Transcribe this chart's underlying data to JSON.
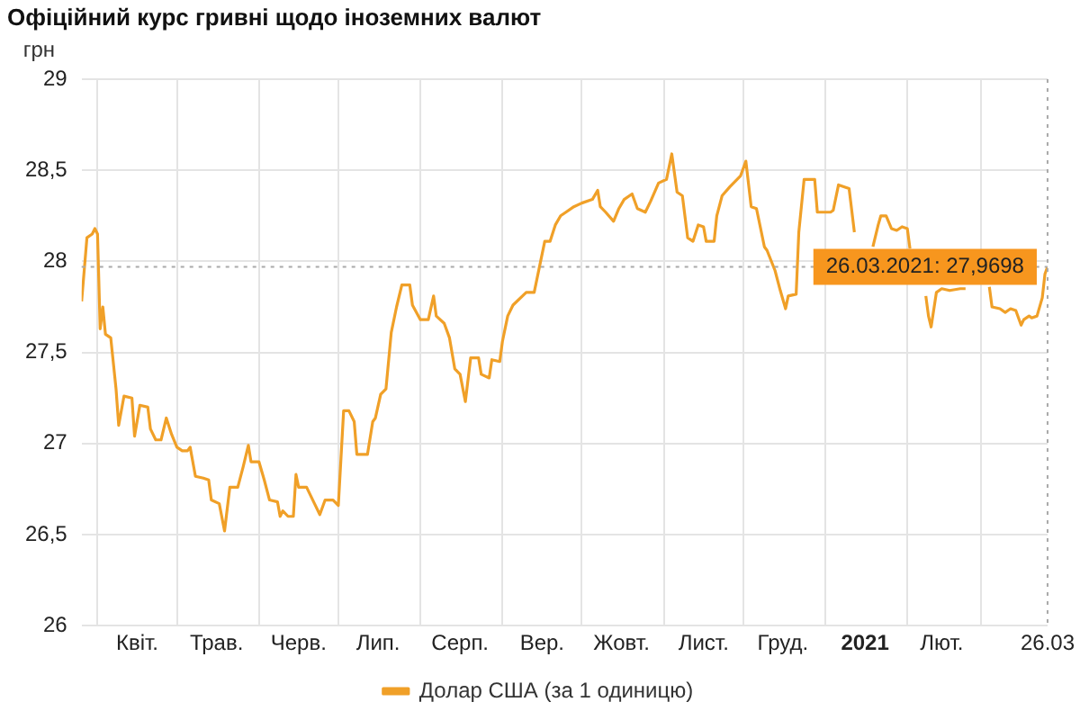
{
  "chart_data": {
    "type": "line",
    "title": "Офіційний курс гривні щодо іноземних валют",
    "ylabel": "грн",
    "series": [
      {
        "name": "Долар США (за 1 одиницю)",
        "color": "#f0a028",
        "x": [
          "2020-03-26",
          "2020-03-28",
          "2020-03-30",
          "2020-03-31",
          "2020-04-01",
          "2020-04-02",
          "2020-04-03",
          "2020-04-04",
          "2020-04-06",
          "2020-04-08",
          "2020-04-09",
          "2020-04-11",
          "2020-04-14",
          "2020-04-15",
          "2020-04-17",
          "2020-04-20",
          "2020-04-21",
          "2020-04-23",
          "2020-04-25",
          "2020-04-27",
          "2020-04-29",
          "2020-05-01",
          "2020-05-03",
          "2020-05-05",
          "2020-05-06",
          "2020-05-08",
          "2020-05-11",
          "2020-05-13",
          "2020-05-14",
          "2020-05-17",
          "2020-05-19",
          "2020-05-21",
          "2020-05-24",
          "2020-05-26",
          "2020-05-28",
          "2020-05-29",
          "2020-06-01",
          "2020-06-03",
          "2020-06-05",
          "2020-06-08",
          "2020-06-09",
          "2020-06-10",
          "2020-06-12",
          "2020-06-14",
          "2020-06-15",
          "2020-06-16",
          "2020-06-19",
          "2020-06-22",
          "2020-06-24",
          "2020-06-26",
          "2020-06-29",
          "2020-07-01",
          "2020-07-03",
          "2020-07-05",
          "2020-07-07",
          "2020-07-08",
          "2020-07-10",
          "2020-07-12",
          "2020-07-14",
          "2020-07-15",
          "2020-07-17",
          "2020-07-19",
          "2020-07-21",
          "2020-07-23",
          "2020-07-25",
          "2020-07-28",
          "2020-07-29",
          "2020-08-01",
          "2020-08-04",
          "2020-08-06",
          "2020-08-07",
          "2020-08-10",
          "2020-08-12",
          "2020-08-14",
          "2020-08-16",
          "2020-08-18",
          "2020-08-20",
          "2020-08-23",
          "2020-08-24",
          "2020-08-27",
          "2020-08-28",
          "2020-08-31",
          "2020-09-01",
          "2020-09-03",
          "2020-09-05",
          "2020-09-10",
          "2020-09-13",
          "2020-09-17",
          "2020-09-19",
          "2020-09-21",
          "2020-09-23",
          "2020-09-25",
          "2020-09-28",
          "2020-10-01",
          "2020-10-05",
          "2020-10-07",
          "2020-10-08",
          "2020-10-10",
          "2020-10-13",
          "2020-10-15",
          "2020-10-17",
          "2020-10-20",
          "2020-10-22",
          "2020-10-25",
          "2020-10-27",
          "2020-10-30",
          "2020-11-02",
          "2020-11-04",
          "2020-11-06",
          "2020-11-08",
          "2020-11-10",
          "2020-11-12",
          "2020-11-14",
          "2020-11-16",
          "2020-11-17",
          "2020-11-20",
          "2020-11-21",
          "2020-11-23",
          "2020-11-26",
          "2020-11-28",
          "2020-11-30",
          "2020-12-02",
          "2020-12-04",
          "2020-12-06",
          "2020-12-09",
          "2020-12-10",
          "2020-12-13",
          "2020-12-15",
          "2020-12-17",
          "2020-12-18",
          "2020-12-21",
          "2020-12-22",
          "2020-12-24",
          "2020-12-28",
          "2020-12-29",
          "2020-12-31",
          "2021-01-03",
          "2021-01-04",
          "2021-01-06",
          "2021-01-10",
          "2021-01-12",
          "2021-01-16",
          "2021-01-19",
          "2021-01-21",
          "2021-01-22",
          "2021-01-24",
          "2021-01-26",
          "2021-01-28",
          "2021-01-30",
          "2021-02-01",
          "2021-02-02",
          "2021-02-05",
          "2021-02-08",
          "2021-02-09",
          "2021-02-10",
          "2021-02-12",
          "2021-02-14",
          "2021-02-17",
          "2021-02-21",
          "2021-02-23",
          "2021-02-26",
          "2021-03-04",
          "2021-03-05",
          "2021-03-08",
          "2021-03-10",
          "2021-03-12",
          "2021-03-14",
          "2021-03-16",
          "2021-03-17",
          "2021-03-19",
          "2021-03-20",
          "2021-03-22",
          "2021-03-24",
          "2021-03-25",
          "2021-03-26"
        ],
        "values": [
          27.78,
          28.13,
          28.15,
          28.18,
          28.15,
          27.63,
          27.75,
          27.6,
          27.58,
          27.3,
          27.1,
          27.26,
          27.25,
          27.04,
          27.21,
          27.2,
          27.08,
          27.02,
          27.02,
          27.14,
          27.05,
          26.98,
          26.96,
          26.96,
          26.98,
          26.82,
          26.81,
          26.8,
          26.69,
          26.67,
          26.52,
          26.76,
          26.76,
          26.87,
          26.99,
          26.9,
          26.9,
          26.8,
          26.69,
          26.68,
          26.6,
          26.63,
          26.6,
          26.6,
          26.83,
          26.76,
          26.76,
          26.67,
          26.61,
          26.69,
          26.69,
          26.66,
          27.18,
          27.18,
          27.12,
          26.94,
          26.94,
          26.94,
          27.12,
          27.14,
          27.27,
          27.3,
          27.61,
          27.75,
          27.87,
          27.87,
          27.76,
          27.68,
          27.68,
          27.81,
          27.7,
          27.66,
          27.58,
          27.41,
          27.38,
          27.23,
          27.47,
          27.47,
          27.38,
          27.36,
          27.46,
          27.45,
          27.56,
          27.7,
          27.76,
          27.83,
          27.83,
          28.11,
          28.11,
          28.2,
          28.25,
          28.27,
          28.3,
          28.32,
          28.34,
          28.39,
          28.3,
          28.27,
          28.22,
          28.29,
          28.34,
          28.37,
          28.29,
          28.27,
          28.33,
          28.43,
          28.45,
          28.59,
          28.38,
          28.36,
          28.13,
          28.11,
          28.2,
          28.19,
          28.11,
          28.11,
          28.25,
          28.36,
          28.41,
          28.44,
          28.47,
          28.55,
          28.3,
          28.29,
          28.08,
          28.06,
          27.95,
          27.84,
          27.74,
          27.81,
          27.82,
          28.16,
          28.45,
          28.45,
          28.27,
          28.27,
          28.27,
          28.28,
          28.42,
          28.4,
          28.16,
          null,
          28.08,
          28.2,
          28.25,
          28.25,
          28.18,
          28.17,
          28.19,
          28.18,
          28.07,
          null,
          27.81,
          27.7,
          27.64,
          27.83,
          27.85,
          27.84,
          27.85,
          27.85,
          null,
          27.86,
          27.75,
          27.74,
          27.72,
          27.74,
          27.73,
          27.65,
          27.68,
          27.7,
          27.69,
          27.7,
          27.8,
          27.93,
          27.9698
        ]
      }
    ],
    "xlim": [
      "2020-03-26",
      "2021-03-26"
    ],
    "xticks": [
      {
        "value": "2020-04-01",
        "label": null
      },
      {
        "value": "2020-04-16",
        "label": "Квіт."
      },
      {
        "value": "2020-05-01",
        "label": null
      },
      {
        "value": "2020-05-16",
        "label": "Трав."
      },
      {
        "value": "2020-06-01",
        "label": null
      },
      {
        "value": "2020-06-16",
        "label": "Черв."
      },
      {
        "value": "2020-07-01",
        "label": null
      },
      {
        "value": "2020-07-16",
        "label": "Лип."
      },
      {
        "value": "2020-08-01",
        "label": null
      },
      {
        "value": "2020-08-16",
        "label": "Серп."
      },
      {
        "value": "2020-09-01",
        "label": null
      },
      {
        "value": "2020-09-16",
        "label": "Вер."
      },
      {
        "value": "2020-10-01",
        "label": null
      },
      {
        "value": "2020-10-16",
        "label": "Жовт."
      },
      {
        "value": "2020-11-01",
        "label": null
      },
      {
        "value": "2020-11-16",
        "label": "Лист."
      },
      {
        "value": "2020-12-01",
        "label": null
      },
      {
        "value": "2020-12-16",
        "label": "Груд."
      },
      {
        "value": "2021-01-01",
        "label": null
      },
      {
        "value": "2021-01-16",
        "label": "2021"
      },
      {
        "value": "2021-02-01",
        "label": null
      },
      {
        "value": "2021-02-14",
        "label": "Лют."
      },
      {
        "value": "2021-03-01",
        "label": null
      },
      {
        "value": "2021-03-26",
        "label": "26.03"
      }
    ],
    "ylim": [
      26,
      29
    ],
    "yticks": [
      26,
      {
        "value": 26.5,
        "label": "26,5"
      },
      27,
      {
        "value": 27.5,
        "label": "27,5"
      },
      28,
      {
        "value": 28.5,
        "label": "28,5"
      },
      29
    ],
    "ref_lines": [
      {
        "axis": "y",
        "value": 27.9698,
        "line_style": "dotted",
        "color": "#aaaaaa"
      },
      {
        "axis": "x",
        "value": "2021-03-26",
        "line_style": "dotted",
        "color": "#aaaaaa"
      }
    ],
    "annotations": [
      {
        "text": "26.03.2021: 27,9698",
        "x": "2021-03-26",
        "y": 27.9698
      }
    ],
    "grid": true,
    "legend": "bottom"
  }
}
